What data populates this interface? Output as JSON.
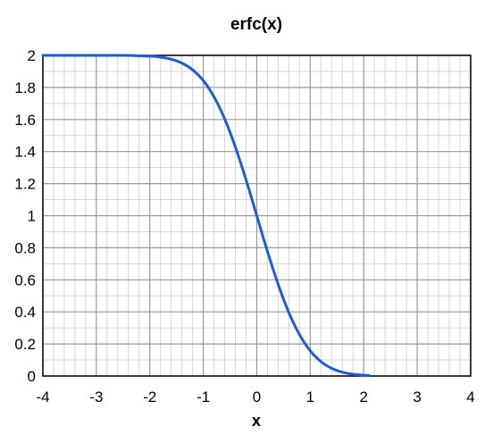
{
  "chart_data": {
    "type": "line",
    "title": "erfc(x)",
    "xlabel": "x",
    "ylabel": "",
    "xlim": [
      -4,
      4
    ],
    "ylim": [
      0,
      2
    ],
    "x_ticks": [
      -4,
      -3,
      -2,
      -1,
      0,
      1,
      2,
      3,
      4
    ],
    "x_tick_labels": [
      "-4",
      "-3",
      "-2",
      "-1",
      "0",
      "1",
      "2",
      "3",
      "4"
    ],
    "y_ticks": [
      0,
      0.2,
      0.4,
      0.6,
      0.8,
      1,
      1.2,
      1.4,
      1.6,
      1.8,
      2
    ],
    "y_tick_labels": [
      "0",
      "0.2",
      "0.4",
      "0.6",
      "0.8",
      "1",
      "1.2",
      "1.4",
      "1.6",
      "1.8",
      "2"
    ],
    "grid": true,
    "line_color": "#1f5bd8",
    "series": [
      {
        "x": [
          -4,
          -3.5,
          -3,
          -2.5,
          -2,
          -1.8,
          -1.6,
          -1.4,
          -1.2,
          -1,
          -0.8,
          -0.6,
          -0.4,
          -0.2,
          0,
          0.2,
          0.4,
          0.6,
          0.8,
          1,
          1.2,
          1.4,
          1.6,
          1.8,
          2,
          2.1
        ],
        "y": [
          2,
          2,
          2,
          2,
          1.995,
          1.989,
          1.976,
          1.952,
          1.91,
          1.843,
          1.742,
          1.604,
          1.428,
          1.223,
          1.0,
          0.777,
          0.572,
          0.396,
          0.258,
          0.157,
          0.09,
          0.048,
          0.024,
          0.011,
          0.005,
          0.003
        ]
      }
    ]
  }
}
